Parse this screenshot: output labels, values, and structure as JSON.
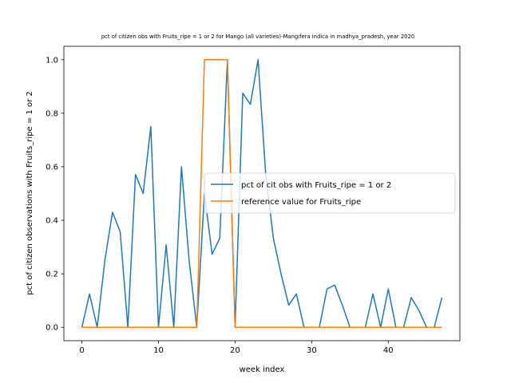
{
  "chart_data": {
    "type": "line",
    "title": "pct of citizen obs with Fruits_ripe = 1 or 2 for Mango (all varieties)-Mangifera indica in madhya_pradesh, year 2020",
    "xlabel": "week index",
    "ylabel": "pct of citizen observations with Fruits_ripe = 1 or 2",
    "xlim": [
      -2.35,
      49.35
    ],
    "ylim": [
      -0.05,
      1.05
    ],
    "xticks": [
      0,
      10,
      20,
      30,
      40
    ],
    "yticks": [
      0.0,
      0.2,
      0.4,
      0.6,
      0.8,
      1.0
    ],
    "xtick_labels": [
      "0",
      "10",
      "20",
      "30",
      "40"
    ],
    "ytick_labels": [
      "0.0",
      "0.2",
      "0.4",
      "0.6",
      "0.8",
      "1.0"
    ],
    "grid": false,
    "legend_position": "center-right",
    "series": [
      {
        "name": "pct of cit obs with Fruits_ripe = 1 or 2",
        "color": "#1f77b4",
        "x": [
          0,
          1,
          2,
          3,
          4,
          5,
          6,
          7,
          8,
          9,
          10,
          11,
          12,
          13,
          14,
          15,
          16,
          17,
          18,
          19,
          20,
          21,
          22,
          23,
          24,
          25,
          26,
          27,
          28,
          29,
          30,
          31,
          32,
          33,
          34,
          35,
          36,
          37,
          38,
          39,
          40,
          41,
          42,
          43,
          44,
          45,
          46,
          47
        ],
        "y": [
          0,
          0.125,
          0,
          0.25,
          0.43,
          0.357,
          0,
          0.571,
          0.5,
          0.75,
          0,
          0.308,
          0,
          0.6,
          0.25,
          0,
          0.5,
          0.273,
          0.333,
          1.0,
          0,
          0.875,
          0.833,
          1.0,
          0.571,
          0.333,
          0.2,
          0.083,
          0.125,
          0,
          0,
          0,
          0.143,
          0.158,
          0.083,
          0,
          0,
          0,
          0.125,
          0,
          0.143,
          0,
          0,
          0.111,
          0.063,
          0,
          0,
          0.111
        ]
      },
      {
        "name": "reference value for Fruits_ripe",
        "color": "#ff7f0e",
        "x": [
          0,
          1,
          2,
          3,
          4,
          5,
          6,
          7,
          8,
          9,
          10,
          11,
          12,
          13,
          14,
          15,
          16,
          17,
          18,
          19,
          20,
          21,
          22,
          23,
          24,
          25,
          26,
          27,
          28,
          29,
          30,
          31,
          32,
          33,
          34,
          35,
          36,
          37,
          38,
          39,
          40,
          41,
          42,
          43,
          44,
          45,
          46,
          47
        ],
        "y": [
          0,
          0,
          0,
          0,
          0,
          0,
          0,
          0,
          0,
          0,
          0,
          0,
          0,
          0,
          0,
          0,
          1,
          1,
          1,
          1,
          0,
          0,
          0,
          0,
          0,
          0,
          0,
          0,
          0,
          0,
          0,
          0,
          0,
          0,
          0,
          0,
          0,
          0,
          0,
          0,
          0,
          0,
          0,
          0,
          0,
          0,
          0,
          0
        ]
      }
    ]
  }
}
